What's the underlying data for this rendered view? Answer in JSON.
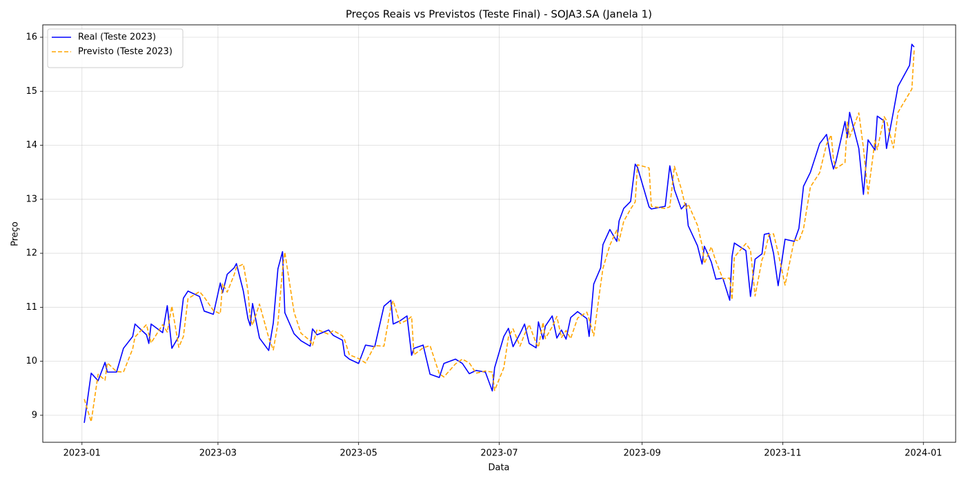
{
  "chart_data": {
    "type": "line",
    "title": "Preços Reais vs Previstos (Teste Final) - SOJA3.SA (Janela 1)",
    "x_label": "Data",
    "y_label": "Preço",
    "x": [
      "2023-01-02",
      "2023-01-05",
      "2023-01-08",
      "2023-01-11",
      "2023-01-12",
      "2023-01-16",
      "2023-01-19",
      "2023-01-23",
      "2023-01-24",
      "2023-01-29",
      "2023-01-30",
      "2023-01-31",
      "2023-02-05",
      "2023-02-07",
      "2023-02-09",
      "2023-02-12",
      "2023-02-14",
      "2023-02-16",
      "2023-02-21",
      "2023-02-23",
      "2023-02-27",
      "2023-03-02",
      "2023-03-03",
      "2023-03-05",
      "2023-03-08",
      "2023-03-09",
      "2023-03-12",
      "2023-03-14",
      "2023-03-15",
      "2023-03-16",
      "2023-03-19",
      "2023-03-23",
      "2023-03-25",
      "2023-03-27",
      "2023-03-29",
      "2023-03-30",
      "2023-04-03",
      "2023-04-06",
      "2023-04-10",
      "2023-04-11",
      "2023-04-13",
      "2023-04-18",
      "2023-04-20",
      "2023-04-24",
      "2023-04-25",
      "2023-04-27",
      "2023-05-01",
      "2023-05-04",
      "2023-05-08",
      "2023-05-12",
      "2023-05-15",
      "2023-05-16",
      "2023-05-19",
      "2023-05-22",
      "2023-05-24",
      "2023-05-25",
      "2023-05-29",
      "2023-06-01",
      "2023-06-05",
      "2023-06-07",
      "2023-06-12",
      "2023-06-15",
      "2023-06-18",
      "2023-06-21",
      "2023-06-25",
      "2023-06-28",
      "2023-06-29",
      "2023-07-03",
      "2023-07-05",
      "2023-07-07",
      "2023-07-10",
      "2023-07-12",
      "2023-07-14",
      "2023-07-17",
      "2023-07-18",
      "2023-07-20",
      "2023-07-21",
      "2023-07-24",
      "2023-07-26",
      "2023-07-28",
      "2023-07-30",
      "2023-08-01",
      "2023-08-04",
      "2023-08-08",
      "2023-08-09",
      "2023-08-11",
      "2023-08-14",
      "2023-08-15",
      "2023-08-18",
      "2023-08-21",
      "2023-08-22",
      "2023-08-24",
      "2023-08-27",
      "2023-08-29",
      "2023-08-30",
      "2023-09-04",
      "2023-09-05",
      "2023-09-11",
      "2023-09-13",
      "2023-09-15",
      "2023-09-18",
      "2023-09-20",
      "2023-09-21",
      "2023-09-25",
      "2023-09-27",
      "2023-09-28",
      "2023-10-01",
      "2023-10-03",
      "2023-10-06",
      "2023-10-09",
      "2023-10-10",
      "2023-10-11",
      "2023-10-16",
      "2023-10-18",
      "2023-10-20",
      "2023-10-23",
      "2023-10-24",
      "2023-10-26",
      "2023-10-28",
      "2023-10-30",
      "2023-11-02",
      "2023-11-06",
      "2023-11-08",
      "2023-11-10",
      "2023-11-13",
      "2023-11-17",
      "2023-11-20",
      "2023-11-22",
      "2023-11-23",
      "2023-11-24",
      "2023-11-28",
      "2023-11-29",
      "2023-11-30",
      "2023-12-04",
      "2023-12-06",
      "2023-12-08",
      "2023-12-11",
      "2023-12-12",
      "2023-12-15",
      "2023-12-16",
      "2023-12-19",
      "2023-12-21",
      "2023-12-26",
      "2023-12-27",
      "2023-12-28"
    ],
    "series": [
      {
        "name": "Real (Teste 2023)",
        "color": "#0000ff",
        "linestyle": "solid",
        "values": [
          8.86,
          9.78,
          9.64,
          9.98,
          9.8,
          9.8,
          10.24,
          10.46,
          10.69,
          10.49,
          10.33,
          10.69,
          10.53,
          11.03,
          10.24,
          10.46,
          11.17,
          11.3,
          11.2,
          10.93,
          10.87,
          11.45,
          11.27,
          11.61,
          11.73,
          11.81,
          11.3,
          10.79,
          10.66,
          11.07,
          10.43,
          10.2,
          10.71,
          11.71,
          12.03,
          10.9,
          10.51,
          10.38,
          10.28,
          10.6,
          10.49,
          10.58,
          10.48,
          10.39,
          10.11,
          10.04,
          9.96,
          10.3,
          10.27,
          11.02,
          11.13,
          10.69,
          10.75,
          10.84,
          10.11,
          10.24,
          10.3,
          9.76,
          9.7,
          9.96,
          10.04,
          9.96,
          9.77,
          9.83,
          9.8,
          9.45,
          9.88,
          10.46,
          10.61,
          10.27,
          10.51,
          10.69,
          10.33,
          10.25,
          10.73,
          10.41,
          10.65,
          10.84,
          10.43,
          10.58,
          10.41,
          10.81,
          10.92,
          10.79,
          10.46,
          11.43,
          11.73,
          12.16,
          12.44,
          12.22,
          12.6,
          12.83,
          12.96,
          13.65,
          13.59,
          12.86,
          12.82,
          12.87,
          13.62,
          13.18,
          12.82,
          12.92,
          12.51,
          12.14,
          11.8,
          12.13,
          11.84,
          11.52,
          11.54,
          11.13,
          11.94,
          12.19,
          12.05,
          11.2,
          11.89,
          11.99,
          12.35,
          12.37,
          12.0,
          11.4,
          12.26,
          12.22,
          12.46,
          13.24,
          13.5,
          14.03,
          14.2,
          13.73,
          13.56,
          13.69,
          14.44,
          14.14,
          14.61,
          13.94,
          13.09,
          14.1,
          13.91,
          14.54,
          14.45,
          13.94,
          14.62,
          15.09,
          15.48,
          15.87,
          15.82
        ]
      },
      {
        "name": "Previsto (Teste 2023)",
        "color": "#ffa500",
        "linestyle": "dashed",
        "values": [
          9.3,
          8.88,
          9.76,
          9.65,
          9.97,
          9.81,
          9.8,
          10.23,
          10.45,
          10.68,
          10.5,
          10.34,
          10.68,
          10.54,
          11.02,
          10.26,
          10.46,
          11.16,
          11.29,
          11.19,
          10.94,
          10.88,
          11.44,
          11.28,
          11.6,
          11.74,
          11.8,
          11.31,
          10.8,
          10.67,
          11.06,
          10.44,
          10.21,
          10.7,
          11.7,
          12.02,
          10.91,
          10.52,
          10.38,
          10.29,
          10.59,
          10.5,
          10.57,
          10.47,
          10.39,
          10.12,
          10.05,
          9.97,
          10.29,
          10.28,
          11.01,
          11.12,
          10.7,
          10.76,
          10.83,
          10.12,
          10.25,
          10.29,
          9.77,
          9.71,
          9.95,
          10.04,
          9.97,
          9.78,
          9.82,
          9.8,
          9.46,
          9.88,
          10.45,
          10.6,
          10.28,
          10.5,
          10.68,
          10.34,
          10.26,
          10.72,
          10.42,
          10.64,
          10.83,
          10.44,
          10.57,
          10.42,
          10.8,
          10.91,
          10.78,
          10.47,
          11.42,
          11.72,
          12.15,
          12.43,
          12.23,
          12.59,
          12.82,
          12.95,
          13.64,
          13.58,
          12.87,
          12.83,
          12.86,
          13.61,
          13.19,
          12.83,
          12.91,
          12.52,
          12.15,
          11.81,
          12.12,
          11.85,
          11.53,
          11.54,
          11.14,
          11.93,
          12.18,
          12.06,
          11.21,
          11.88,
          11.98,
          12.34,
          12.36,
          12.01,
          11.41,
          12.25,
          12.23,
          12.45,
          13.23,
          13.49,
          14.02,
          14.19,
          13.74,
          13.57,
          13.68,
          14.43,
          14.15,
          14.6,
          13.95,
          13.1,
          14.09,
          13.92,
          14.53,
          14.46,
          13.95,
          14.61,
          14.97,
          15.04,
          15.76
        ]
      }
    ],
    "xlim": [
      "2022-12-15",
      "2024-01-15"
    ],
    "xticks": [
      {
        "value": "2023-01-01",
        "label": "2023-01"
      },
      {
        "value": "2023-03-01",
        "label": "2023-03"
      },
      {
        "value": "2023-05-01",
        "label": "2023-05"
      },
      {
        "value": "2023-07-01",
        "label": "2023-07"
      },
      {
        "value": "2023-09-01",
        "label": "2023-09"
      },
      {
        "value": "2023-11-01",
        "label": "2023-11"
      },
      {
        "value": "2024-01-01",
        "label": "2024-01"
      }
    ],
    "ylim": [
      8.5,
      16.23
    ],
    "yticks": [
      9,
      10,
      11,
      12,
      13,
      14,
      15,
      16
    ],
    "grid": true,
    "legend": "upper left"
  }
}
